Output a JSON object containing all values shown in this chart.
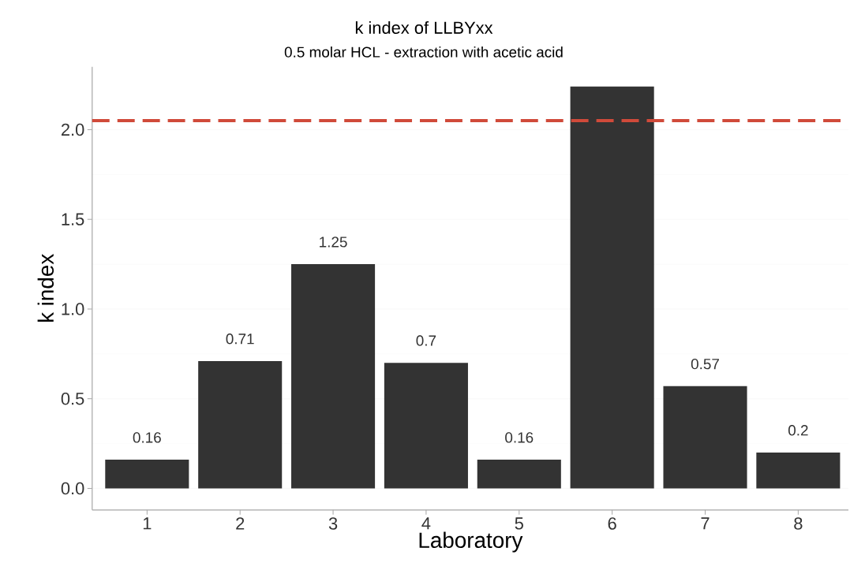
{
  "chart_data": {
    "type": "bar",
    "title": "k index of LLBYxx",
    "subtitle": "0.5 molar HCL - extraction with acetic acid",
    "xlabel": "Laboratory",
    "ylabel": "k index",
    "categories": [
      "1",
      "2",
      "3",
      "4",
      "5",
      "6",
      "7",
      "8"
    ],
    "values": [
      0.16,
      0.71,
      1.25,
      0.7,
      0.16,
      2.24,
      0.57,
      0.2
    ],
    "value_labels": [
      "0.16",
      "0.71",
      "1.25",
      "0.7",
      "0.16",
      null,
      "0.57",
      "0.2"
    ],
    "color": "#333333",
    "ylim": [
      -0.12,
      2.35
    ],
    "yticks": [
      {
        "value": 0,
        "label": "0.0"
      },
      0.5,
      {
        "value": 1,
        "label": "1.0"
      },
      1.5,
      {
        "value": 2,
        "label": "2.0"
      }
    ],
    "grid": "y",
    "ref_lines": [
      {
        "axis": "y",
        "value": 2.05,
        "color": "#d04a3a",
        "line_style": "dashed"
      }
    ]
  }
}
